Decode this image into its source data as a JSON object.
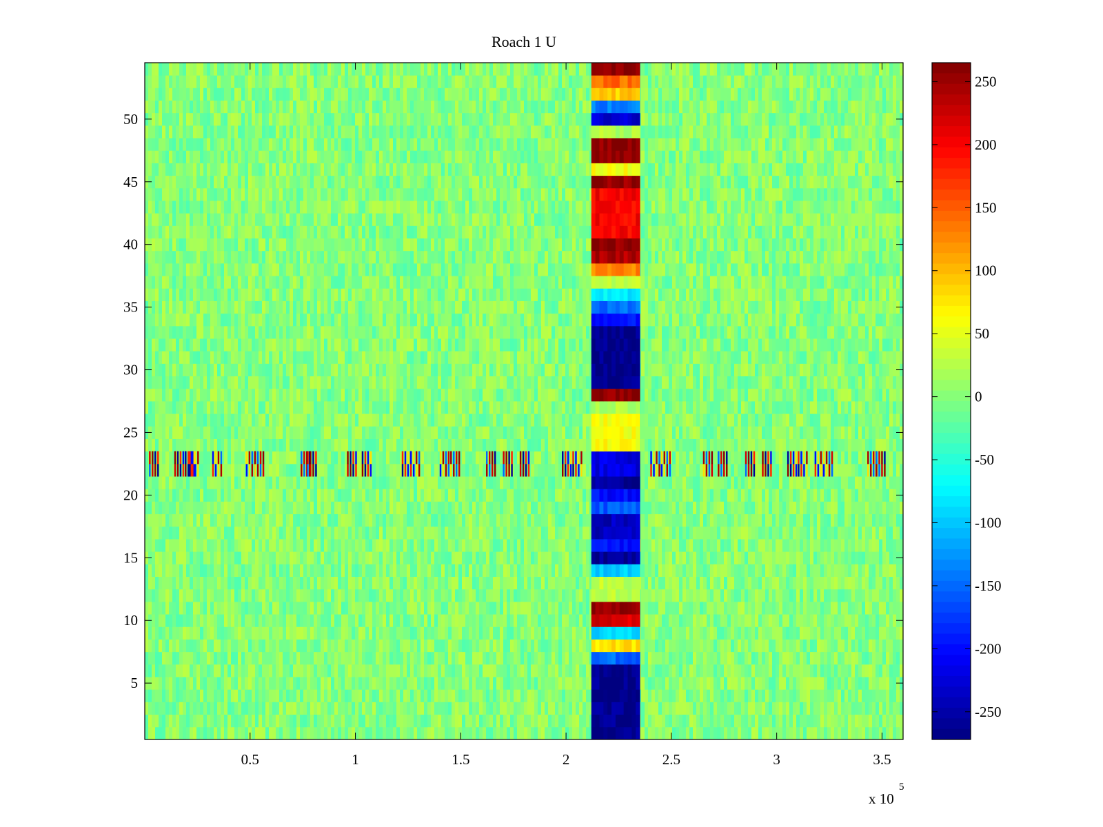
{
  "chart_data": {
    "type": "heatmap",
    "title": "Roach 1 U",
    "xlabel": "",
    "ylabel": "",
    "x_exponent_label": "x 10",
    "x_exponent_power": "5",
    "xlim": [
      0,
      360000
    ],
    "ylim": [
      0.5,
      54.5
    ],
    "x_ticks": [
      {
        "value": 50000,
        "label": "0.5"
      },
      {
        "value": 100000,
        "label": "1"
      },
      {
        "value": 150000,
        "label": "1.5"
      },
      {
        "value": 200000,
        "label": "2"
      },
      {
        "value": 250000,
        "label": "2.5"
      },
      {
        "value": 300000,
        "label": "3"
      },
      {
        "value": 350000,
        "label": "3.5"
      }
    ],
    "y_ticks": [
      {
        "value": 5,
        "label": "5"
      },
      {
        "value": 10,
        "label": "10"
      },
      {
        "value": 15,
        "label": "15"
      },
      {
        "value": 20,
        "label": "20"
      },
      {
        "value": 25,
        "label": "25"
      },
      {
        "value": 30,
        "label": "30"
      },
      {
        "value": 35,
        "label": "35"
      },
      {
        "value": 40,
        "label": "40"
      },
      {
        "value": 45,
        "label": "45"
      },
      {
        "value": 50,
        "label": "50"
      }
    ],
    "colorbar": {
      "colormap": "jet",
      "clim": [
        -272,
        265
      ],
      "ticks": [
        {
          "value": 250,
          "label": "250"
        },
        {
          "value": 200,
          "label": "200"
        },
        {
          "value": 150,
          "label": "150"
        },
        {
          "value": 100,
          "label": "100"
        },
        {
          "value": 50,
          "label": "50"
        },
        {
          "value": 0,
          "label": "0"
        },
        {
          "value": -50,
          "label": "-50"
        },
        {
          "value": -100,
          "label": "-100"
        },
        {
          "value": -150,
          "label": "-150"
        },
        {
          "value": -200,
          "label": "-200"
        },
        {
          "value": -250,
          "label": "-250"
        }
      ]
    },
    "background": {
      "base_value": 0,
      "noise_amplitude": 30
    },
    "event_band": {
      "x_range": [
        212000,
        235000
      ],
      "channel_values": [
        {
          "channels": [
            1,
            6
          ],
          "value": -265
        },
        {
          "channels": [
            7,
            7
          ],
          "value": -150
        },
        {
          "channels": [
            8,
            8
          ],
          "value": 80
        },
        {
          "channels": [
            9,
            9
          ],
          "value": -90
        },
        {
          "channels": [
            10,
            10
          ],
          "value": 220
        },
        {
          "channels": [
            11,
            11
          ],
          "value": 255
        },
        {
          "channels": [
            12,
            13
          ],
          "value": 30
        },
        {
          "channels": [
            14,
            14
          ],
          "value": -100
        },
        {
          "channels": [
            15,
            15
          ],
          "value": -260
        },
        {
          "channels": [
            16,
            16
          ],
          "value": -200
        },
        {
          "channels": [
            17,
            18
          ],
          "value": -240
        },
        {
          "channels": [
            19,
            19
          ],
          "value": -160
        },
        {
          "channels": [
            20,
            20
          ],
          "value": -200
        },
        {
          "channels": [
            21,
            21
          ],
          "value": -260
        },
        {
          "channels": [
            22,
            23
          ],
          "value": -220
        },
        {
          "channels": [
            24,
            26
          ],
          "value": 60
        },
        {
          "channels": [
            27,
            27
          ],
          "value": 25
        },
        {
          "channels": [
            28,
            28
          ],
          "value": 260
        },
        {
          "channels": [
            29,
            33
          ],
          "value": -268
        },
        {
          "channels": [
            34,
            34
          ],
          "value": -200
        },
        {
          "channels": [
            35,
            35
          ],
          "value": -150
        },
        {
          "channels": [
            36,
            36
          ],
          "value": -80
        },
        {
          "channels": [
            37,
            37
          ],
          "value": 30
        },
        {
          "channels": [
            38,
            38
          ],
          "value": 130
        },
        {
          "channels": [
            39,
            39
          ],
          "value": 240
        },
        {
          "channels": [
            40,
            40
          ],
          "value": 255
        },
        {
          "channels": [
            41,
            44
          ],
          "value": 200
        },
        {
          "channels": [
            45,
            45
          ],
          "value": 255
        },
        {
          "channels": [
            46,
            46
          ],
          "value": 60
        },
        {
          "channels": [
            47,
            48
          ],
          "value": 260
        },
        {
          "channels": [
            49,
            49
          ],
          "value": 20
        },
        {
          "channels": [
            50,
            50
          ],
          "value": -230
        },
        {
          "channels": [
            51,
            51
          ],
          "value": -140
        },
        {
          "channels": [
            52,
            52
          ],
          "value": 90
        },
        {
          "channels": [
            53,
            53
          ],
          "value": 140
        },
        {
          "channels": [
            54,
            54
          ],
          "value": 260
        }
      ]
    },
    "burst_channels": [
      22,
      23
    ],
    "burst_x_positions": [
      2000,
      14000,
      19000,
      21000,
      32000,
      48000,
      52000,
      74000,
      77000,
      96000,
      103000,
      122000,
      126000,
      140000,
      145000,
      162000,
      170000,
      178000,
      198000,
      203000,
      240000,
      245000,
      265000,
      272000,
      285000,
      293000,
      305000,
      310000,
      318000,
      322000,
      343000,
      347000
    ]
  }
}
